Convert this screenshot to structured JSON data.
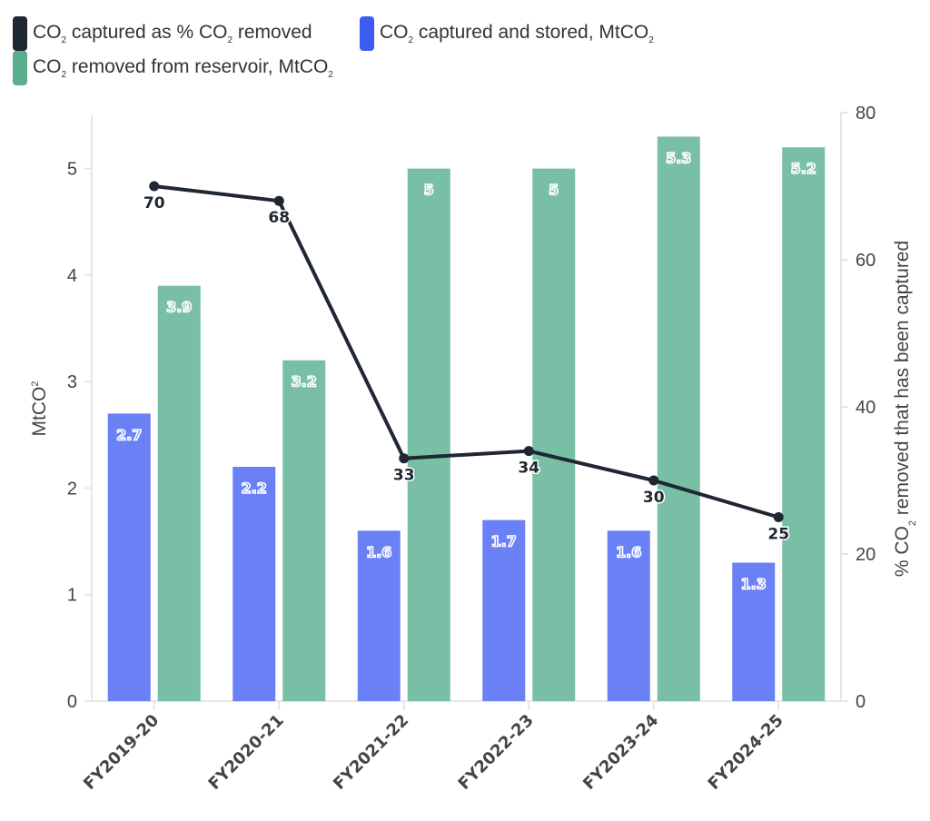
{
  "chart_data": {
    "type": "bar",
    "categories": [
      "FY2019-20",
      "FY2020-21",
      "FY2021-22",
      "FY2022-23",
      "FY2023-24",
      "FY2024-25"
    ],
    "series": [
      {
        "name": "CO2 captured and stored, MtCO2",
        "legend": [
          "CO",
          "2",
          " captured and stored, MtCO",
          "2"
        ],
        "kind": "bar",
        "axis": "left",
        "color": "#6a80f5",
        "legend_color": "#3d5cf0",
        "values": [
          2.7,
          2.2,
          1.6,
          1.7,
          1.6,
          1.3
        ],
        "labels": [
          "2.7",
          "2.2",
          "1.6",
          "1.7",
          "1.6",
          "1.3"
        ]
      },
      {
        "name": "CO2 removed from reservoir, MtCO2",
        "legend": [
          "CO",
          "2",
          " removed from reservoir, MtCO",
          "2"
        ],
        "kind": "bar",
        "axis": "left",
        "color": "#79bfa5",
        "legend_color": "#5aad8d",
        "values": [
          3.9,
          3.2,
          5,
          5,
          5.3,
          5.2
        ],
        "labels": [
          "3.9",
          "3.2",
          "5",
          "5",
          "5.3",
          "5.2"
        ]
      },
      {
        "name": "CO2 captured as % CO2 removed",
        "legend": [
          "CO",
          "2",
          " captured as % CO",
          "2",
          " removed"
        ],
        "kind": "line",
        "axis": "right",
        "color": "#1f2733",
        "legend_color": "#1f2733",
        "values": [
          70,
          68,
          33,
          34,
          30,
          25
        ],
        "labels": [
          "70",
          "68",
          "33",
          "34",
          "30",
          "25"
        ]
      }
    ],
    "left_axis": {
      "title": [
        "MtCO",
        "2"
      ],
      "ticks": [
        "0",
        "1",
        "2",
        "3",
        "4",
        "5"
      ],
      "range": [
        0,
        5.5
      ]
    },
    "right_axis": {
      "title": [
        "% CO",
        "2",
        " removed that has been captured"
      ],
      "ticks": [
        "0",
        "20",
        "40",
        "60",
        "80"
      ],
      "range": [
        0,
        80
      ]
    },
    "legend_placement": "top-left",
    "grid": false
  }
}
